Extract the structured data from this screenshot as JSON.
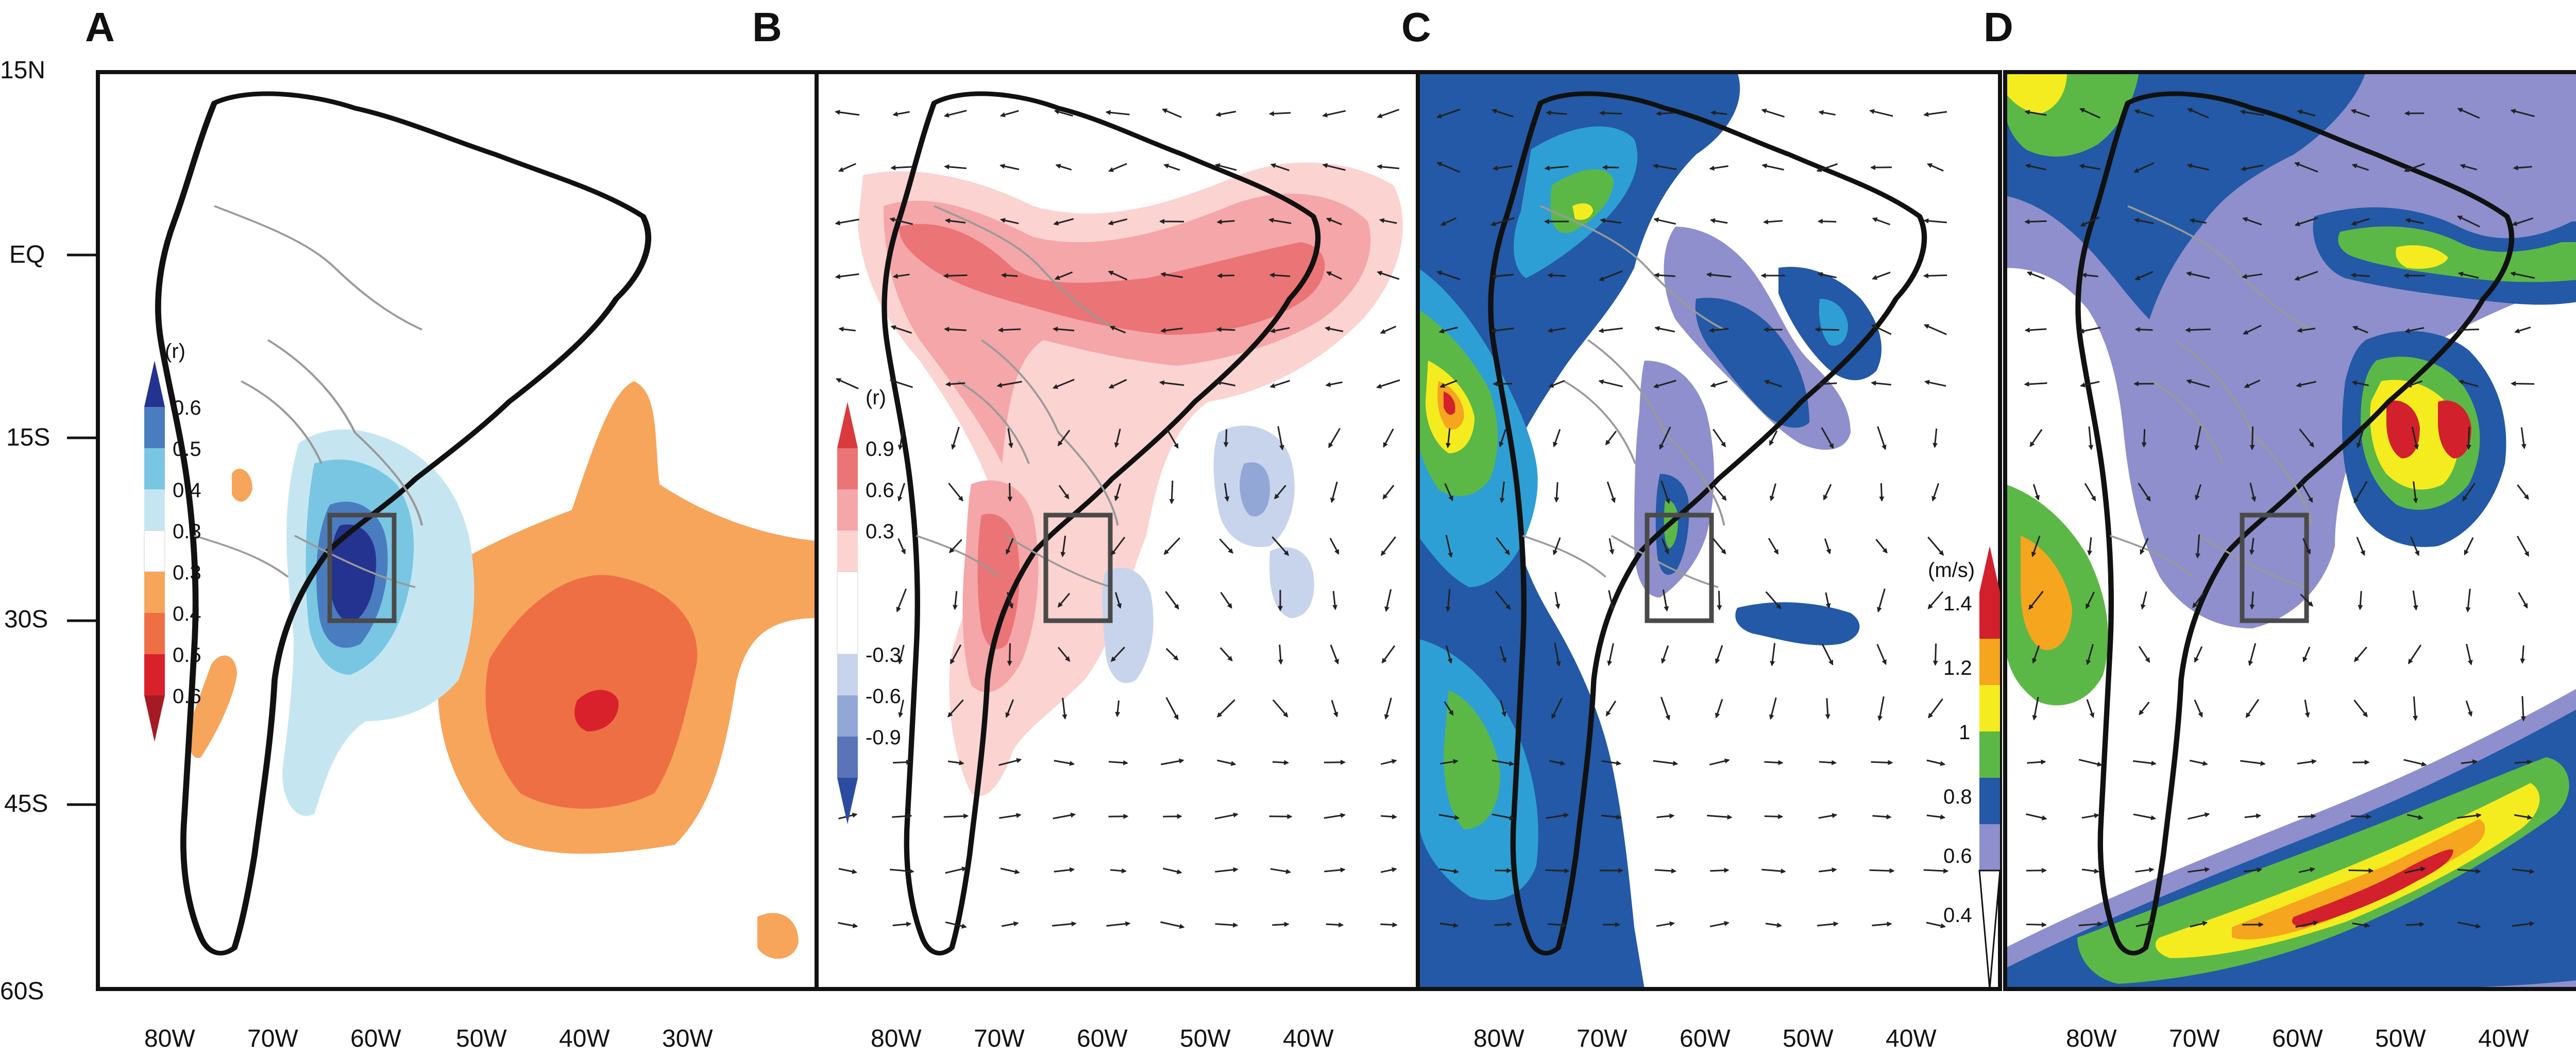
{
  "panels": [
    {
      "letter": "A",
      "colorbar_unit": "(r)",
      "colorbar_labels": [
        "0.6",
        "0.5",
        "0.4",
        "0.3",
        "0.3",
        "0.4",
        "0.5",
        "0.6"
      ]
    },
    {
      "letter": "B",
      "colorbar_unit": "(r)",
      "colorbar_labels": [
        "0.9",
        "0.6",
        "0.3",
        "-0.3",
        "-0.6",
        "-0.9"
      ]
    },
    {
      "letter": "C"
    },
    {
      "letter": "D",
      "colorbar_unit": "(m/s)",
      "colorbar_labels": [
        "1.4",
        "1.2",
        "1",
        "0.8",
        "0.6",
        "0.4"
      ]
    }
  ],
  "lat_labels": [
    "15N",
    "EQ",
    "15S",
    "30S",
    "45S",
    "60S"
  ],
  "lon_labels_A": [
    "80W",
    "70W",
    "60W",
    "50W",
    "40W",
    "30W"
  ],
  "lon_labels_B": [
    "80W",
    "70W",
    "60W",
    "50W",
    "40W"
  ],
  "lon_labels_C": [
    "80W",
    "70W",
    "60W",
    "50W",
    "40W"
  ],
  "lon_labels_D": [
    "80W",
    "70W",
    "60W",
    "50W",
    "40W"
  ],
  "colors": {
    "corr_pos_3": "#f6a55a",
    "corr_pos_2": "#ef6f45",
    "corr_pos_1": "#d9212c",
    "corr_neg_1": "#c5e6f1",
    "corr_neg_2": "#79c6e3",
    "corr_neg_3": "#4a7dbf",
    "corr_neg_4": "#24338f",
    "b_pos_1": "#fbd3d1",
    "b_pos_2": "#f4a6a8",
    "b_pos_3": "#ea7476",
    "b_pos_4": "#d93a3d",
    "b_neg_1": "#c8d3ec",
    "b_neg_2": "#92a7d6",
    "b_neg_3": "#5a74b8",
    "wind_04": "#8e8fcc",
    "wind_06": "#2359a6",
    "wind_08": "#2e9fd4",
    "wind_10": "#5cb846",
    "wind_12": "#f5ec1f",
    "wind_13": "#f6a51e",
    "wind_14": "#d2202c"
  }
}
